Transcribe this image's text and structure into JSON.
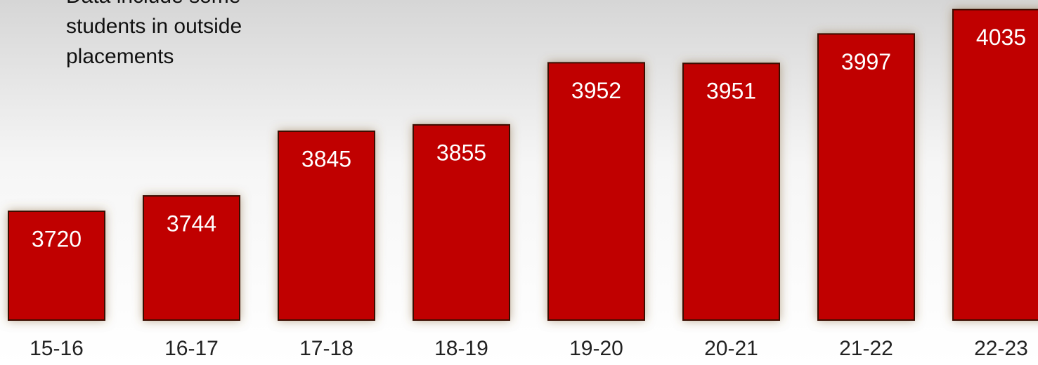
{
  "chart_data": {
    "type": "bar",
    "annotation": [
      "Data include some",
      "students in outside",
      "placements"
    ],
    "categories": [
      "15-16",
      "16-17",
      "17-18",
      "18-19",
      "19-20",
      "20-21",
      "21-22",
      "22-23"
    ],
    "values": [
      3720,
      3744,
      3845,
      3855,
      3952,
      3951,
      3997,
      4035
    ],
    "color": "#c00000",
    "ylim": [
      3550,
      4050
    ]
  }
}
